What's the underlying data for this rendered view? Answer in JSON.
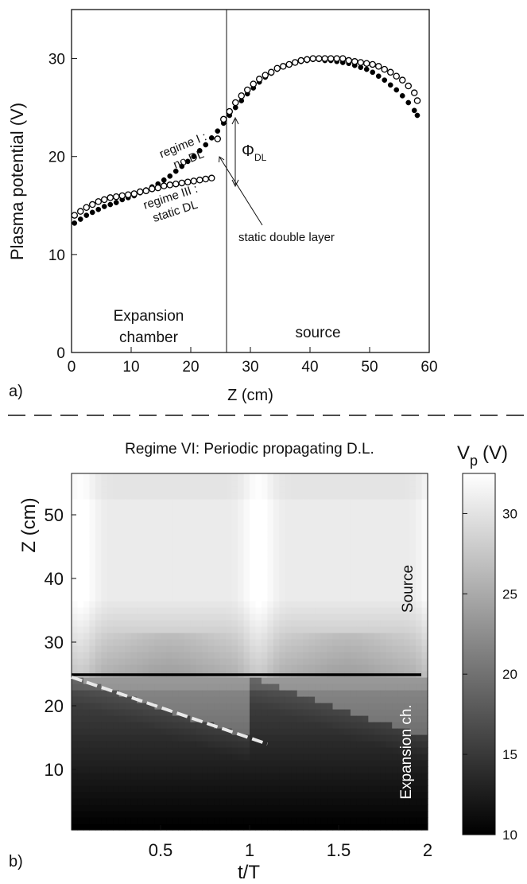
{
  "chart_data": [
    {
      "type": "scatter",
      "panel_label": "a)",
      "xlabel": "Z (cm)",
      "ylabel": "Plasma potential (V)",
      "xlim": [
        0,
        60
      ],
      "ylim": [
        0,
        35
      ],
      "x_ticks": [
        "0",
        "10",
        "20",
        "30",
        "40",
        "50",
        "60"
      ],
      "y_ticks": [
        "0",
        "10",
        "20",
        "30"
      ],
      "grid": false,
      "series": [
        {
          "label": "regime I :\nno DL",
          "marker": "filled-circle",
          "x": [
            0.5,
            1.5,
            2.5,
            3.5,
            4.5,
            5.5,
            6.5,
            7.5,
            8.5,
            9.5,
            10.5,
            11.5,
            12.5,
            13.5,
            14.5,
            15.5,
            16.5,
            17.5,
            18.5,
            19.5,
            20.5,
            21.5,
            22.5,
            23.5,
            24.5,
            25.5,
            26.5,
            27.5,
            28.5,
            29.5,
            30.5,
            31.5,
            32.5,
            33.5,
            34.5,
            35.5,
            36.5,
            37.5,
            38.5,
            39.5,
            40.5,
            41.5,
            42.5,
            43.5,
            44.5,
            45.5,
            46.5,
            47.5,
            48.5,
            49.5,
            50.5,
            51.5,
            52.5,
            53.5,
            54.5,
            55.5,
            56.5,
            57.5,
            58.0
          ],
          "y": [
            13.2,
            13.6,
            14.0,
            14.3,
            14.6,
            14.9,
            15.1,
            15.3,
            15.6,
            15.8,
            16.0,
            16.3,
            16.6,
            16.9,
            17.2,
            17.6,
            18.0,
            18.5,
            19.0,
            19.5,
            20.0,
            20.6,
            21.2,
            21.9,
            22.6,
            23.4,
            24.2,
            25.0,
            25.7,
            26.4,
            27.0,
            27.6,
            28.1,
            28.5,
            28.9,
            29.2,
            29.4,
            29.6,
            29.7,
            29.8,
            29.9,
            29.9,
            29.8,
            29.8,
            29.7,
            29.6,
            29.5,
            29.3,
            29.1,
            28.9,
            28.6,
            28.2,
            27.8,
            27.3,
            26.8,
            26.2,
            25.5,
            24.7,
            24.2
          ]
        },
        {
          "label": "regime III :\nstatic DL",
          "marker": "open-circle",
          "x": [
            0.5,
            1.5,
            2.5,
            3.5,
            4.5,
            5.5,
            6.5,
            7.5,
            8.5,
            9.5,
            10.5,
            11.5,
            12.5,
            13.5,
            14.5,
            15.5,
            16.5,
            17.5,
            18.5,
            19.5,
            20.5,
            21.5,
            22.5,
            23.5,
            24.5,
            25.5,
            26.5,
            27.5,
            28.5,
            29.5,
            30.5,
            31.5,
            32.5,
            33.5,
            34.5,
            35.5,
            36.5,
            37.5,
            38.5,
            39.5,
            40.5,
            41.5,
            42.5,
            43.5,
            44.5,
            45.5,
            46.5,
            47.5,
            48.5,
            49.5,
            50.5,
            51.5,
            52.5,
            53.5,
            54.5,
            55.5,
            56.5,
            57.5,
            58.0
          ],
          "y": [
            14.0,
            14.4,
            14.8,
            15.1,
            15.4,
            15.6,
            15.8,
            15.9,
            16.0,
            16.1,
            16.2,
            16.4,
            16.5,
            16.7,
            16.8,
            17.0,
            17.1,
            17.2,
            17.3,
            17.4,
            17.5,
            17.6,
            17.7,
            17.8,
            21.8,
            23.8,
            24.6,
            25.5,
            26.2,
            26.8,
            27.4,
            27.9,
            28.3,
            28.6,
            29.0,
            29.2,
            29.4,
            29.6,
            29.8,
            29.9,
            30.0,
            30.0,
            30.0,
            30.0,
            30.0,
            30.0,
            29.8,
            29.7,
            29.6,
            29.5,
            29.4,
            29.2,
            28.9,
            28.6,
            28.2,
            27.8,
            27.2,
            26.5,
            25.7
          ]
        }
      ],
      "vline_x": 26,
      "annotations": {
        "phi_dl": "Φ",
        "phi_dl_sub": "DL",
        "static_double_layer": "static double layer",
        "expansion_chamber": "Expansion\nchamber",
        "source": "source"
      }
    },
    {
      "type": "heatmap",
      "panel_label": "b)",
      "title": "Regime VI: Periodic propagating D.L.",
      "xlabel": "t/T",
      "ylabel": "Z (cm)",
      "xlim": [
        0,
        2
      ],
      "ylim": [
        0.5,
        56.5
      ],
      "x_ticks": [
        "0.5",
        "1",
        "1.5",
        "2"
      ],
      "y_ticks": [
        "10",
        "20",
        "30",
        "40",
        "50"
      ],
      "boundary_z": 25,
      "dashed_line": {
        "x": [
          0.0,
          1.1
        ],
        "z": [
          24.5,
          14.0
        ]
      },
      "colorbar": {
        "label": "V",
        "label_sub": "p",
        "label_unit": "(V)",
        "range": [
          10,
          32.5
        ],
        "ticks": [
          "10",
          "15",
          "20",
          "25",
          "30"
        ]
      },
      "annotations": {
        "source": "Source",
        "expansion": "Expansion ch."
      }
    }
  ]
}
